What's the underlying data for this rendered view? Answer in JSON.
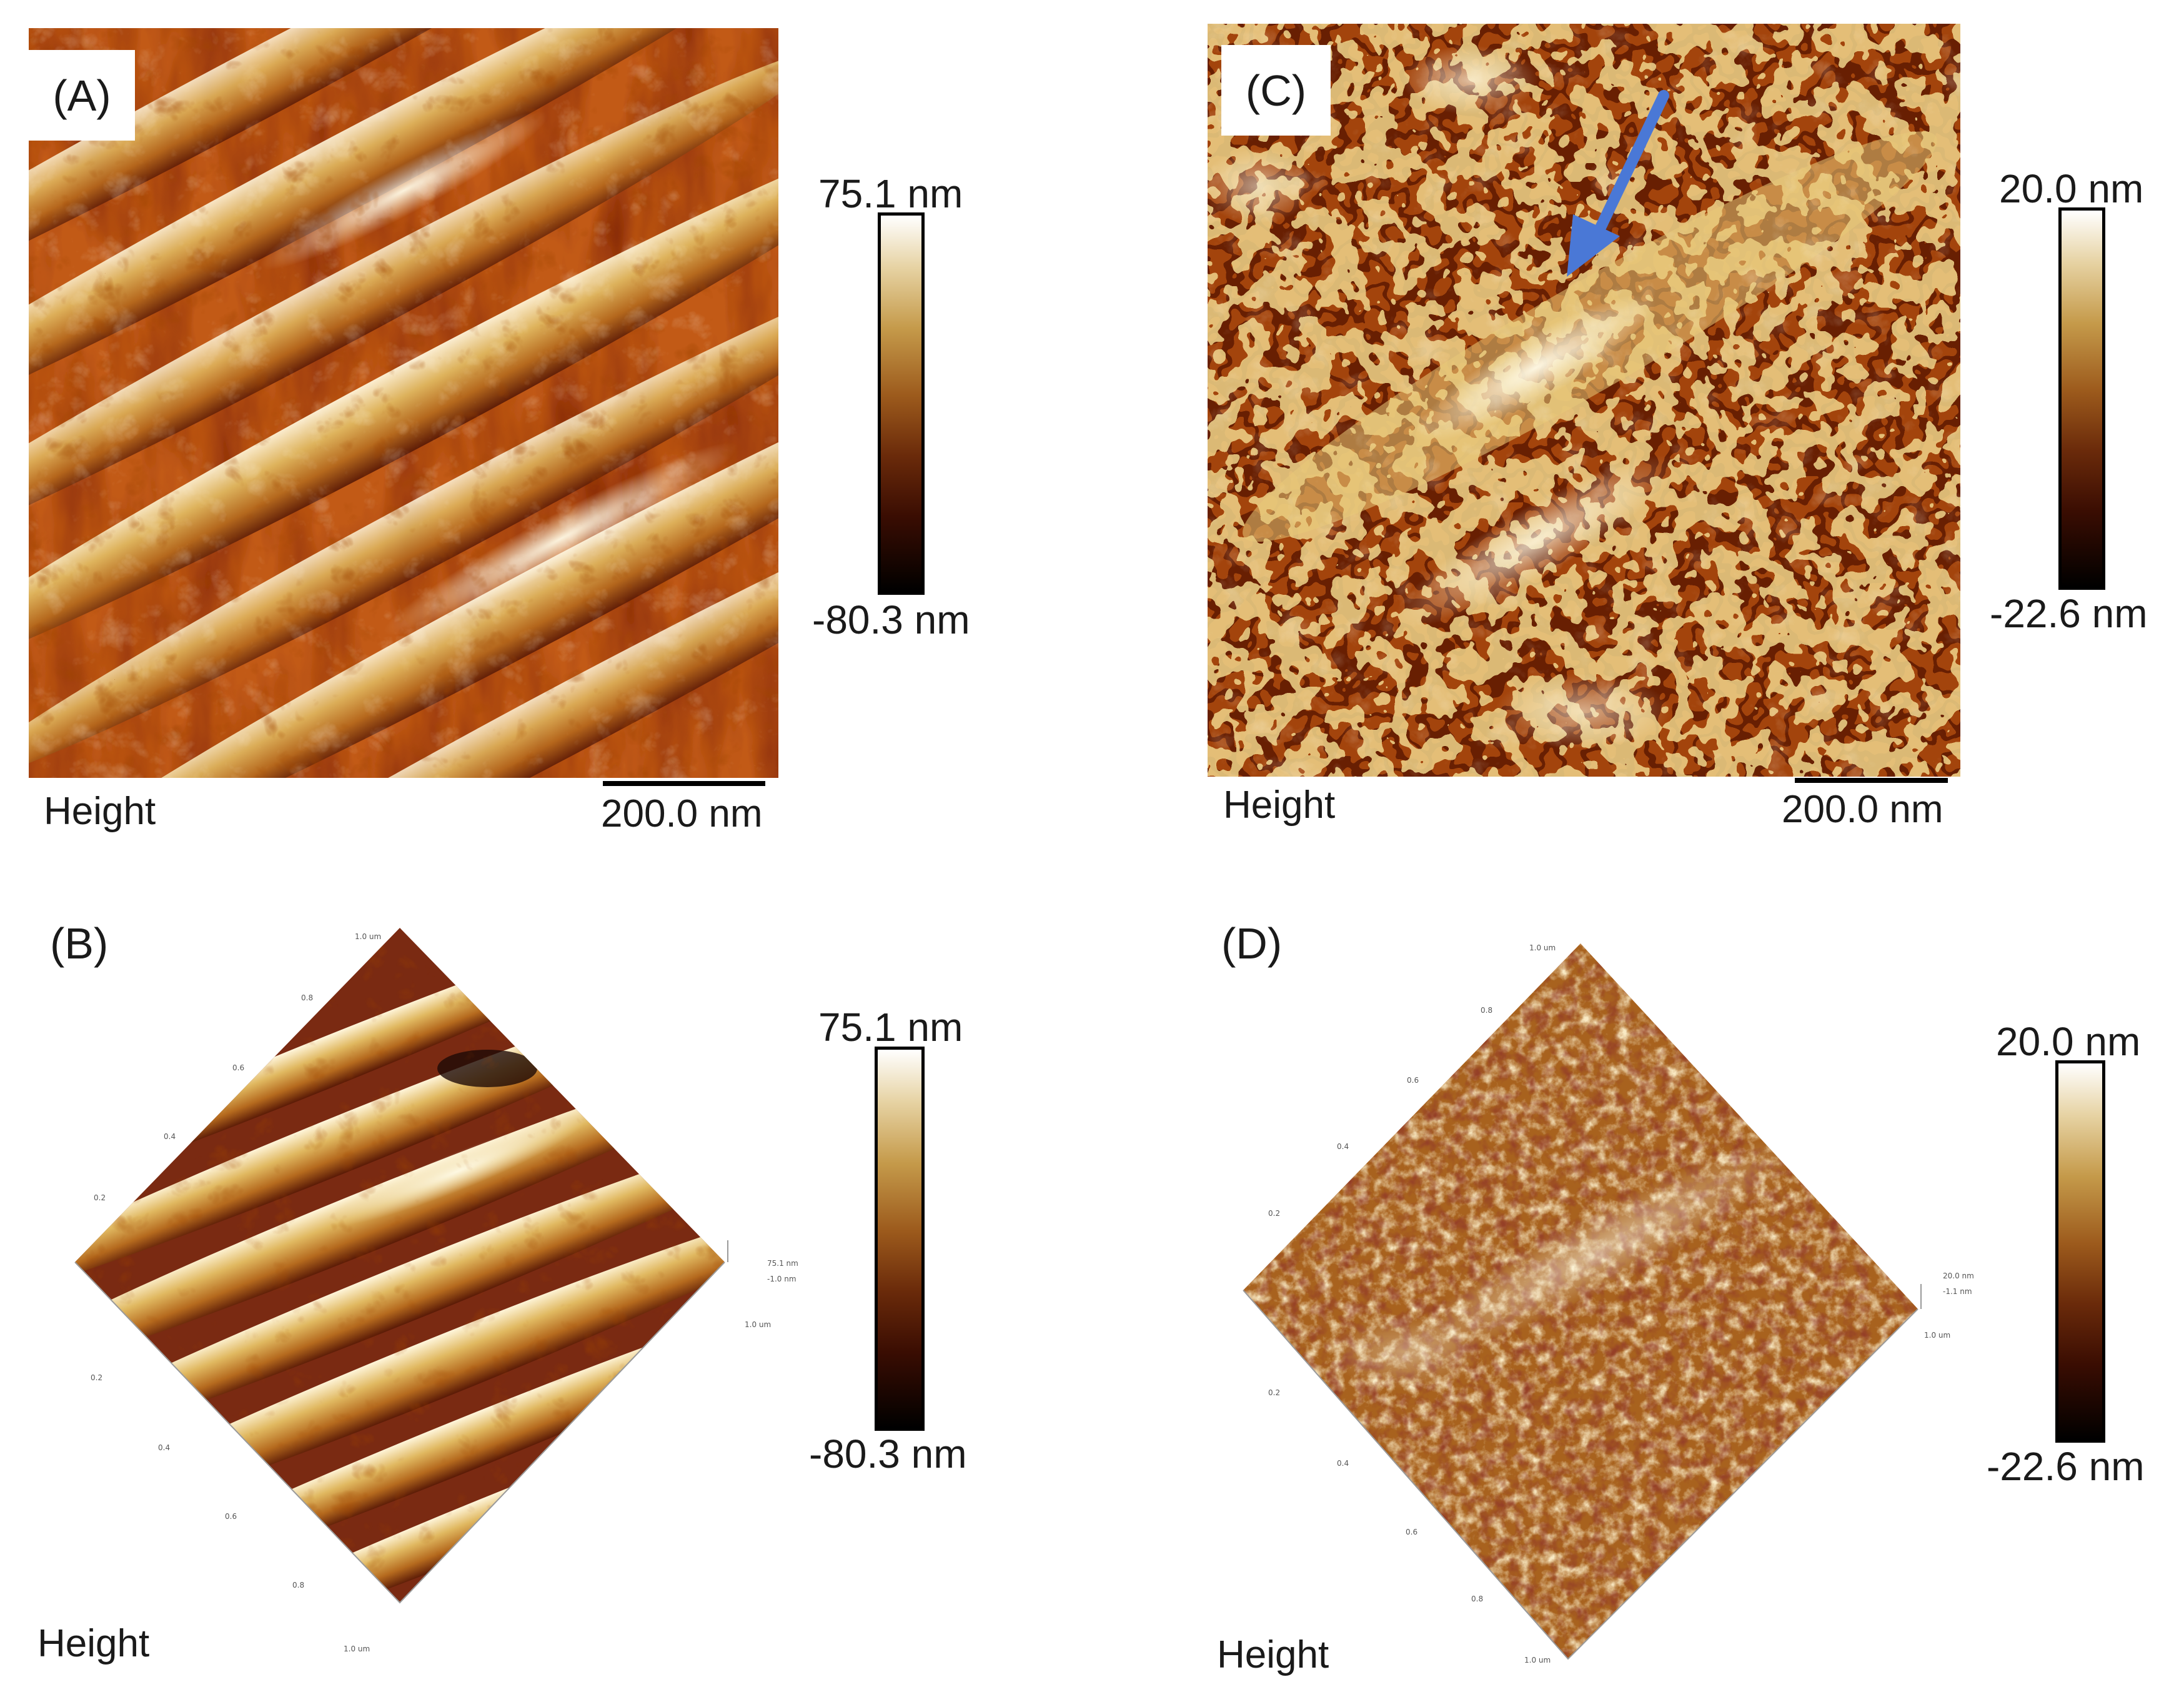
{
  "panels": [
    {
      "id": "A",
      "label": "(A)",
      "type": "2d-height-map",
      "caption": "Height",
      "scale_bar": "200.0 nm",
      "colorbar": {
        "max": "75.1 nm",
        "min": "-80.3 nm"
      }
    },
    {
      "id": "B",
      "label": "(B)",
      "type": "3d-height-map",
      "caption": "Height",
      "colorbar": {
        "max": "75.1 nm",
        "min": "-80.3 nm"
      },
      "axis_ticks": [
        "1.0 um",
        "0.8",
        "0.6",
        "0.4",
        "0.2",
        "0.2",
        "0.4",
        "0.6",
        "0.8",
        "1.0 um"
      ],
      "z_ticks": [
        "75.1 nm",
        "1.0 um",
        "-1.0 nm"
      ]
    },
    {
      "id": "C",
      "label": "(C)",
      "type": "2d-height-map",
      "caption": "Height",
      "scale_bar": "200.0 nm",
      "colorbar": {
        "max": "20.0 nm",
        "min": "-22.6 nm"
      },
      "annotation": "blue arrow"
    },
    {
      "id": "D",
      "label": "(D)",
      "type": "3d-height-map",
      "caption": "Height",
      "colorbar": {
        "max": "20.0 nm",
        "min": "-22.6 nm"
      },
      "axis_ticks": [
        "1.0 um",
        "0.8",
        "0.6",
        "0.4",
        "0.2",
        "0.2",
        "0.4",
        "0.6",
        "0.8",
        "1.0 um"
      ],
      "z_ticks": [
        "20.0 nm",
        "1.0 um",
        "-1.1 nm"
      ]
    }
  ],
  "colors": {
    "colormap": [
      "#000000",
      "#3a0d02",
      "#6a2a0a",
      "#9c5a1c",
      "#c59a4a",
      "#e6d2a2",
      "#ffffff"
    ],
    "arrow": "#4a78d6"
  }
}
